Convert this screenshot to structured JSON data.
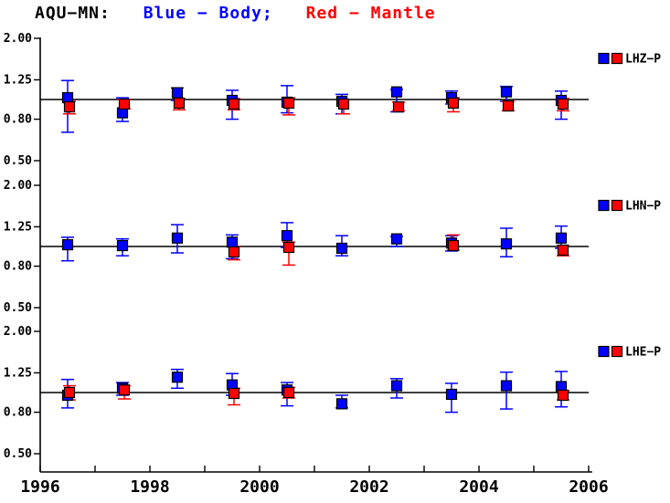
{
  "title": {
    "station": "AQU−MN:",
    "body_legend": "Blue − Body;",
    "mantle_legend": "Red − Mantle"
  },
  "colors": {
    "body": "#0000ff",
    "mantle": "#ff0000",
    "axis": "#000000",
    "background": "#ffffff"
  },
  "chart_data": {
    "type": "scatter",
    "y_scale": "log",
    "x_axis": {
      "min": 1996,
      "max": 2006,
      "tick_step": 1,
      "labeled_ticks": [
        1996,
        1998,
        2000,
        2002,
        2004,
        2006
      ]
    },
    "y_axis": {
      "ticks": [
        {
          "value": 2.0,
          "label": "2.00"
        },
        {
          "value": 1.25,
          "label": "1.25"
        },
        {
          "value": 0.8,
          "label": "0.80"
        },
        {
          "value": 0.5,
          "label": "0.50"
        }
      ],
      "reference_value": 1.0
    },
    "panels": [
      {
        "label": "LHZ−P",
        "points": [
          {
            "year": 1996.5,
            "body": {
              "v": 1.02,
              "lo": 0.69,
              "hi": 1.24
            },
            "mantle": {
              "v": 0.92,
              "lo": 0.85,
              "hi": 0.98
            }
          },
          {
            "year": 1997.5,
            "body": {
              "v": 0.86,
              "lo": 0.78,
              "hi": 1.02
            },
            "mantle": {
              "v": 0.95,
              "lo": 0.9,
              "hi": 1.0
            }
          },
          {
            "year": 1998.5,
            "body": {
              "v": 1.08,
              "lo": 0.99,
              "hi": 1.14
            },
            "mantle": {
              "v": 0.96,
              "lo": 0.89,
              "hi": 1.01
            }
          },
          {
            "year": 1999.5,
            "body": {
              "v": 0.99,
              "lo": 0.8,
              "hi": 1.11
            },
            "mantle": {
              "v": 0.95,
              "lo": 0.89,
              "hi": 1.01
            }
          },
          {
            "year": 2000.5,
            "body": {
              "v": 0.97,
              "lo": 0.86,
              "hi": 1.17
            },
            "mantle": {
              "v": 0.96,
              "lo": 0.84,
              "hi": 1.02
            }
          },
          {
            "year": 2001.5,
            "body": {
              "v": 0.98,
              "lo": 0.85,
              "hi": 1.06
            },
            "mantle": {
              "v": 0.95,
              "lo": 0.85,
              "hi": 1.0
            }
          },
          {
            "year": 2002.5,
            "body": {
              "v": 1.09,
              "lo": 0.87,
              "hi": 1.12
            },
            "mantle": {
              "v": 0.92,
              "lo": 0.88,
              "hi": 0.97
            }
          },
          {
            "year": 2003.5,
            "body": {
              "v": 1.02,
              "lo": 0.95,
              "hi": 1.1
            },
            "mantle": {
              "v": 0.96,
              "lo": 0.87,
              "hi": 1.02
            }
          },
          {
            "year": 2004.5,
            "body": {
              "v": 1.09,
              "lo": 0.98,
              "hi": 1.16
            },
            "mantle": {
              "v": 0.93,
              "lo": 0.88,
              "hi": 0.98
            }
          },
          {
            "year": 2005.5,
            "body": {
              "v": 0.99,
              "lo": 0.8,
              "hi": 1.1
            },
            "mantle": {
              "v": 0.95,
              "lo": 0.88,
              "hi": 1.01
            }
          }
        ]
      },
      {
        "label": "LHN−P",
        "points": [
          {
            "year": 1996.5,
            "body": {
              "v": 1.02,
              "lo": 0.85,
              "hi": 1.11
            },
            "mantle": null
          },
          {
            "year": 1997.5,
            "body": {
              "v": 1.01,
              "lo": 0.9,
              "hi": 1.09
            },
            "mantle": null
          },
          {
            "year": 1998.5,
            "body": {
              "v": 1.1,
              "lo": 0.93,
              "hi": 1.28
            },
            "mantle": null
          },
          {
            "year": 1999.5,
            "body": {
              "v": 1.05,
              "lo": 0.87,
              "hi": 1.14
            },
            "mantle": {
              "v": 0.94,
              "lo": 0.86,
              "hi": 1.0
            }
          },
          {
            "year": 2000.5,
            "body": {
              "v": 1.13,
              "lo": 0.99,
              "hi": 1.31
            },
            "mantle": {
              "v": 0.99,
              "lo": 0.81,
              "hi": 1.05
            }
          },
          {
            "year": 2001.5,
            "body": {
              "v": 0.98,
              "lo": 0.9,
              "hi": 1.13
            },
            "mantle": null
          },
          {
            "year": 2002.5,
            "body": {
              "v": 1.09,
              "lo": 1.0,
              "hi": 1.12
            },
            "mantle": null
          },
          {
            "year": 2003.5,
            "body": {
              "v": 1.04,
              "lo": 0.95,
              "hi": 1.13
            },
            "mantle": {
              "v": 1.01,
              "lo": 0.96,
              "hi": 1.14
            }
          },
          {
            "year": 2004.5,
            "body": {
              "v": 1.03,
              "lo": 0.89,
              "hi": 1.23
            },
            "mantle": null
          },
          {
            "year": 2005.5,
            "body": {
              "v": 1.1,
              "lo": 0.98,
              "hi": 1.26
            },
            "mantle": {
              "v": 0.96,
              "lo": 0.9,
              "hi": 1.01
            }
          }
        ]
      },
      {
        "label": "LHE−P",
        "points": [
          {
            "year": 1996.5,
            "body": {
              "v": 0.97,
              "lo": 0.84,
              "hi": 1.16
            },
            "mantle": {
              "v": 1.0,
              "lo": 0.92,
              "hi": 1.08
            }
          },
          {
            "year": 1997.5,
            "body": {
              "v": 1.05,
              "lo": 0.97,
              "hi": 1.12
            },
            "mantle": {
              "v": 1.03,
              "lo": 0.93,
              "hi": 1.08
            }
          },
          {
            "year": 1998.5,
            "body": {
              "v": 1.19,
              "lo": 1.05,
              "hi": 1.3
            },
            "mantle": null
          },
          {
            "year": 1999.5,
            "body": {
              "v": 1.09,
              "lo": 0.97,
              "hi": 1.24
            },
            "mantle": {
              "v": 0.99,
              "lo": 0.87,
              "hi": 1.05
            }
          },
          {
            "year": 2000.5,
            "body": {
              "v": 1.03,
              "lo": 0.86,
              "hi": 1.12
            },
            "mantle": {
              "v": 1.0,
              "lo": 0.94,
              "hi": 1.06
            }
          },
          {
            "year": 2001.5,
            "body": {
              "v": 0.88,
              "lo": 0.84,
              "hi": 0.97
            },
            "mantle": null
          },
          {
            "year": 2002.5,
            "body": {
              "v": 1.08,
              "lo": 0.94,
              "hi": 1.17
            },
            "mantle": null
          },
          {
            "year": 2003.5,
            "body": {
              "v": 0.98,
              "lo": 0.8,
              "hi": 1.11
            },
            "mantle": null
          },
          {
            "year": 2004.5,
            "body": {
              "v": 1.08,
              "lo": 0.83,
              "hi": 1.26
            },
            "mantle": null
          },
          {
            "year": 2005.5,
            "body": {
              "v": 1.07,
              "lo": 0.85,
              "hi": 1.27
            },
            "mantle": {
              "v": 0.97,
              "lo": 0.92,
              "hi": 1.02
            }
          }
        ]
      }
    ]
  }
}
